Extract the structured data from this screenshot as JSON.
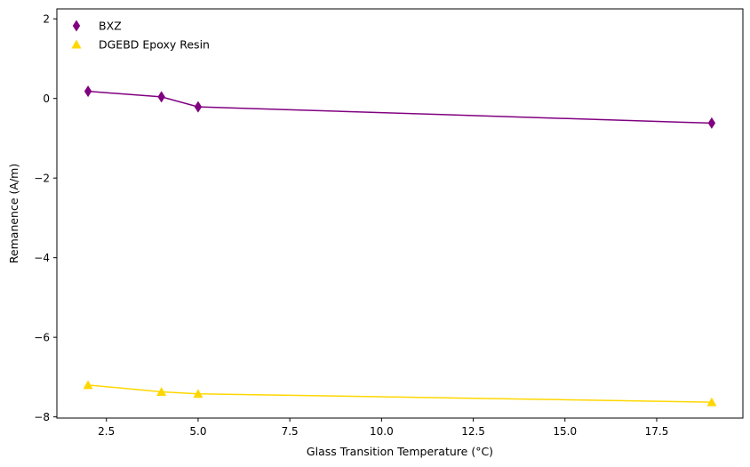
{
  "chart_data": {
    "type": "scatter",
    "title": "",
    "xlabel": "Glass Transition Temperature (°C)",
    "ylabel": "Remanence (A/m)",
    "xlim": [
      1.15,
      19.85
    ],
    "ylim": [
      -8.03,
      2.25
    ],
    "xticks": [
      2.5,
      5.0,
      7.5,
      10.0,
      12.5,
      15.0,
      17.5
    ],
    "xtick_labels": [
      "2.5",
      "5.0",
      "7.5",
      "10.0",
      "12.5",
      "15.0",
      "17.5"
    ],
    "yticks": [
      -8,
      -6,
      -4,
      -2,
      0,
      2
    ],
    "ytick_labels": [
      "−8",
      "−6",
      "−4",
      "−2",
      "0",
      "2"
    ],
    "grid": false,
    "legend_position": "upper-left",
    "series": [
      {
        "name": "BXZ",
        "color": "#800080",
        "marker": "thin-diamond",
        "x": [
          2,
          4,
          5,
          19
        ],
        "y": [
          0.18,
          0.04,
          -0.21,
          -0.62
        ]
      },
      {
        "name": "DGEBD Epoxy Resin",
        "color": "#FFD700",
        "marker": "triangle-up",
        "x": [
          2,
          4,
          5,
          19
        ],
        "y": [
          -7.2,
          -7.37,
          -7.42,
          -7.63
        ]
      }
    ]
  }
}
